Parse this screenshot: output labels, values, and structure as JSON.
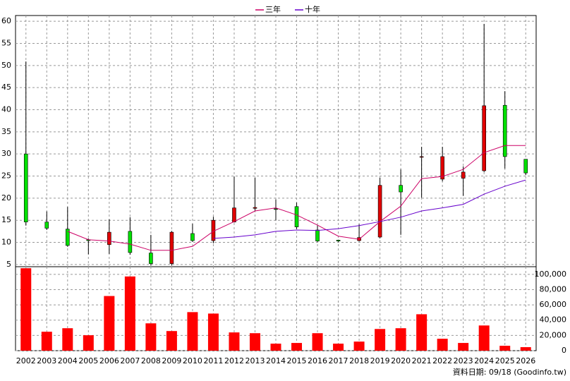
{
  "chart_data": [
    {
      "type": "candlestick",
      "open": [
        30,
        14.6,
        13,
        10.6,
        9.5,
        12.5,
        7.6,
        5.2,
        12,
        10.4,
        14.6,
        17.7,
        17.6,
        18.1,
        12.8,
        10.5,
        10.4,
        11.2,
        22.9,
        29.4,
        24.3,
        24.5,
        26.2,
        41,
        28.8
      ],
      "high": [
        50.9,
        17,
        18,
        10.9,
        15.2,
        15.7,
        11.7,
        12.6,
        14.2,
        15.8,
        24.9,
        24.6,
        19.7,
        19,
        13.8,
        10.6,
        14.1,
        24.6,
        26.5,
        31.6,
        31.6,
        27.2,
        59.4,
        44.2,
        28.8
      ],
      "low": [
        13.8,
        12.8,
        9,
        7.3,
        7.4,
        7.2,
        4.8,
        4.8,
        10.1,
        9.8,
        14.5,
        17.2,
        15,
        13,
        10.1,
        10.1,
        10.2,
        10.9,
        11.7,
        20.1,
        23.8,
        20.5,
        25.9,
        26.7,
        25.2
      ],
      "close": [
        14.6,
        13.2,
        9.3,
        10.4,
        12.3,
        7.7,
        5.2,
        12.3,
        10.4,
        15,
        17.8,
        17.9,
        17.5,
        13.5,
        10.3,
        10.3,
        11.1,
        22.9,
        21.4,
        29.4,
        29.4,
        25.9,
        40.9,
        29.4,
        25.7
      ],
      "up_color": "#e00000",
      "down_color": "#00e000",
      "series": [
        {
          "name": "三年",
          "color": "#cc0066",
          "values": [
            null,
            null,
            12.5,
            10.6,
            10.3,
            9.6,
            8.2,
            8.2,
            9.1,
            12.5,
            14.7,
            17.1,
            17.8,
            16.2,
            13.9,
            11.4,
            10.7,
            14.7,
            18.2,
            24.4,
            24.9,
            26.5,
            30.3,
            31.9,
            31.9
          ]
        },
        {
          "name": "十年",
          "color": "#6600cc",
          "values": [
            null,
            null,
            null,
            null,
            null,
            null,
            null,
            null,
            null,
            10.9,
            11.2,
            11.7,
            12.5,
            12.8,
            12.7,
            13.1,
            13.8,
            14.7,
            15.7,
            17.1,
            17.8,
            18.6,
            20.9,
            22.7,
            24.1
          ]
        }
      ],
      "ylim": [
        4.5,
        61.3
      ],
      "yticks": [
        5,
        10,
        15,
        20,
        25,
        30,
        35,
        40,
        45,
        50,
        55,
        60
      ],
      "grid": true
    },
    {
      "type": "bar",
      "categories": [
        "2002",
        "2003",
        "2004",
        "2005",
        "2006",
        "2007",
        "2008",
        "2009",
        "2010",
        "2011",
        "2012",
        "2013",
        "2014",
        "2015",
        "2016",
        "2017",
        "2018",
        "2019",
        "2020",
        "2021",
        "2022",
        "2023",
        "2024",
        "2025",
        "2026"
      ],
      "values": [
        108000,
        24800,
        29400,
        20200,
        71600,
        97200,
        35800,
        25700,
        50500,
        48600,
        23900,
        22900,
        9200,
        10100,
        22900,
        9200,
        11900,
        28400,
        29400,
        47700,
        15600,
        10100,
        33000,
        6400,
        4600
      ],
      "color": "#ff0000",
      "ylim": [
        0,
        110000
      ],
      "yticks": [
        {
          "value": 0,
          "label": "0"
        },
        {
          "value": 20000,
          "label": "20,000"
        },
        {
          "value": 40000,
          "label": "40,000"
        },
        {
          "value": 60000,
          "label": "60,000"
        },
        {
          "value": 80000,
          "label": "80,000"
        },
        {
          "value": 100000,
          "label": "100,000"
        }
      ],
      "grid": true,
      "note": "資料日期: 09/18 (Goodinfo.tw)"
    }
  ]
}
